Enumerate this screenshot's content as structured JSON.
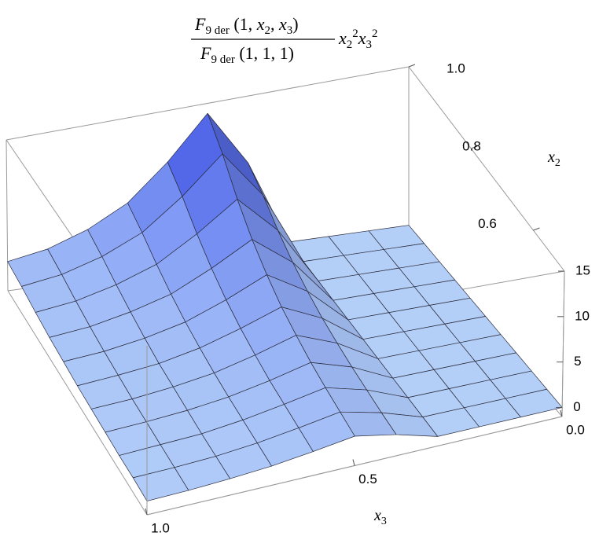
{
  "chart_data": {
    "type": "surface3d",
    "title": {
      "numerator": [
        "F",
        "9 der",
        " (1, ",
        "x",
        "2",
        ", ",
        "x",
        "3",
        ")"
      ],
      "denominator": [
        "F",
        "9 der",
        " (1, 1, 1)"
      ],
      "factor": [
        "x",
        "2",
        "2",
        "x",
        "3",
        "2"
      ]
    },
    "x3_label": [
      "x",
      "3"
    ],
    "x2_label": [
      "x",
      "2"
    ],
    "x3lim": [
      0,
      1
    ],
    "x2lim": [
      0.5,
      1
    ],
    "zlim": [
      -1,
      15
    ],
    "x3ticks": [
      {
        "value": 0,
        "label": "0.0"
      },
      0.5,
      {
        "value": 1,
        "label": "1.0"
      }
    ],
    "x2ticks": [
      0.6,
      0.8,
      {
        "value": 1,
        "label": "1.0"
      }
    ],
    "zticks": [
      0,
      5,
      10,
      15
    ],
    "color_low": "#b3cff8",
    "color_high": "#3346d6",
    "x3": [
      0,
      0.1,
      0.2,
      0.3,
      0.4,
      0.5,
      0.6,
      0.7,
      0.8,
      0.9,
      1
    ],
    "x2": [
      0.5,
      0.55,
      0.6,
      0.65,
      0.7,
      0.75,
      0.8,
      0.85,
      0.9,
      0.95,
      1
    ],
    "z": [
      [
        0,
        0,
        0,
        0,
        1.2,
        2,
        1.4,
        0.9,
        0.6,
        0.4,
        0.3
      ],
      [
        0,
        0,
        0,
        0,
        1.4,
        2.4,
        1.7,
        1.1,
        0.7,
        0.5,
        0.4
      ],
      [
        0,
        0,
        0,
        0,
        1.7,
        2.8,
        2,
        1.3,
        0.8,
        0.6,
        0.4
      ],
      [
        0,
        0,
        0,
        0,
        2,
        3.3,
        2.3,
        1.5,
        1,
        0.7,
        0.5
      ],
      [
        0,
        0,
        0,
        0,
        2.4,
        4,
        2.8,
        1.8,
        1.2,
        0.8,
        0.6
      ],
      [
        0,
        0,
        0,
        0,
        2.9,
        4.8,
        3.4,
        2.2,
        1.4,
        1,
        0.7
      ],
      [
        0,
        0,
        0,
        0,
        3.6,
        6,
        4.2,
        2.7,
        1.8,
        1.2,
        0.9
      ],
      [
        0,
        0,
        0,
        0,
        4.5,
        7.5,
        5.3,
        3.4,
        2.3,
        1.5,
        1.1
      ],
      [
        0,
        0,
        0,
        0,
        5.7,
        9.5,
        6.7,
        4.3,
        2.9,
        1.9,
        1.4
      ],
      [
        0,
        0,
        0,
        0,
        7.2,
        12,
        8.4,
        5.4,
        3.6,
        2.4,
        1.8
      ],
      [
        0,
        0,
        0,
        0,
        8.4,
        14,
        9.8,
        6.3,
        4.2,
        2.8,
        2.1
      ]
    ]
  }
}
